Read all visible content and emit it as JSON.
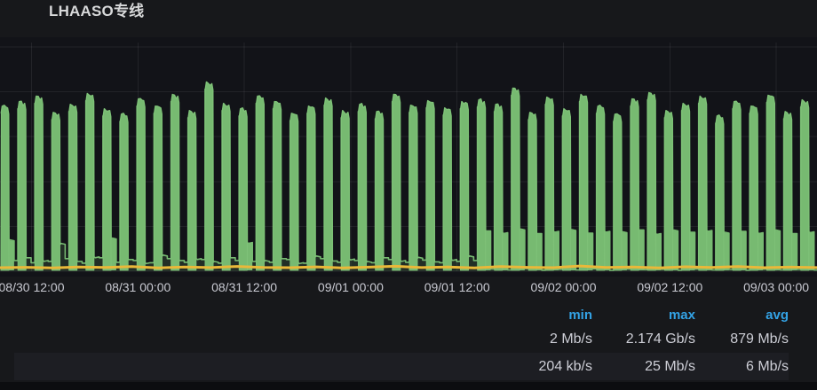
{
  "panel": {
    "title": "LHAASO专线"
  },
  "chart_data": {
    "type": "area",
    "title": "LHAASO专线",
    "description": "Grafana time-series panel of dedicated-line network traffic; periodic green bursts (~every 2h) with a flat orange low-rate series along the bottom",
    "x_tick_labels": [
      "08/30 12:00",
      "08/31 00:00",
      "08/31 12:00",
      "09/01 00:00",
      "09/01 12:00",
      "09/02 00:00",
      "09/02 12:00",
      "09/03 00:00"
    ],
    "x_tick_interval": "12h",
    "y_axis": {
      "unit": "Mb/s",
      "min": 0,
      "max": 2500,
      "gridline_values": [
        0,
        500,
        1000,
        1500,
        2000,
        2500
      ],
      "labels_visible": false
    },
    "grid": true,
    "series": [
      {
        "name": "series-1-green",
        "color": "#77ba71",
        "fill_color": "rgba(119,186,113,0.17)",
        "style": "area-bursts",
        "spikes_unit": "[peak Mb/s, shoulder Mb/s, gap Mb/s] per ~1.85h burst cycle",
        "spikes": [
          [
            1850,
            340,
            120
          ],
          [
            1900,
            150,
            95
          ],
          [
            1960,
            120,
            110
          ],
          [
            1780,
            300,
            140
          ],
          [
            1870,
            110,
            90
          ],
          [
            1990,
            160,
            150
          ],
          [
            1820,
            360,
            100
          ],
          [
            1760,
            130,
            120
          ],
          [
            1930,
            95,
            95
          ],
          [
            1850,
            170,
            140
          ],
          [
            1980,
            120,
            100
          ],
          [
            1800,
            140,
            130
          ],
          [
            2120,
            100,
            90
          ],
          [
            1880,
            150,
            120
          ],
          [
            1820,
            320,
            110
          ],
          [
            1960,
            110,
            100
          ],
          [
            1900,
            140,
            130
          ],
          [
            1770,
            95,
            90
          ],
          [
            1850,
            160,
            140
          ],
          [
            1940,
            115,
            100
          ],
          [
            1800,
            135,
            120
          ],
          [
            1870,
            100,
            95
          ],
          [
            1790,
            150,
            130
          ],
          [
            1980,
            120,
            100
          ],
          [
            1860,
            145,
            125
          ],
          [
            1910,
            105,
            95
          ],
          [
            1830,
            130,
            110
          ],
          [
            1900,
            160,
            120
          ],
          [
            1920,
            450,
            25
          ],
          [
            1870,
            430,
            15
          ],
          [
            2050,
            460,
            30
          ],
          [
            1780,
            420,
            12
          ],
          [
            1950,
            445,
            22
          ],
          [
            1820,
            455,
            15
          ],
          [
            1980,
            425,
            28
          ],
          [
            1850,
            445,
            10
          ],
          [
            1760,
            430,
            25
          ],
          [
            1930,
            460,
            18
          ],
          [
            2000,
            420,
            22
          ],
          [
            1800,
            450,
            12
          ],
          [
            1880,
            435,
            26
          ],
          [
            1960,
            455,
            15
          ],
          [
            1740,
            425,
            20
          ],
          [
            1900,
            445,
            12
          ],
          [
            1850,
            430,
            24
          ],
          [
            1970,
            450,
            16
          ],
          [
            1790,
            420,
            20
          ],
          [
            1920,
            440,
            14
          ]
        ]
      },
      {
        "name": "series-2-orange",
        "color": "#eab839",
        "style": "line",
        "values_mbps": [
          8,
          12,
          6,
          15,
          10,
          18,
          7,
          14,
          9,
          20,
          11,
          8,
          16,
          6,
          13,
          22,
          9,
          15,
          7,
          18,
          12,
          8,
          24,
          10,
          14,
          6,
          17,
          11,
          19,
          8,
          13,
          9
        ]
      }
    ],
    "legend": {
      "position": "bottom",
      "header_color": "#33a2e5",
      "headers": [
        "min",
        "max",
        "avg"
      ],
      "rows": [
        {
          "min": "2 Mb/s",
          "max": "2.174 Gb/s",
          "avg": "879 Mb/s"
        },
        {
          "min": "204 kb/s",
          "max": "25 Mb/s",
          "avg": "6 Mb/s"
        }
      ]
    }
  },
  "colors": {
    "panel_background": "#17181b",
    "plot_background": "#121318",
    "gridline": "rgba(255,255,255,0.07)",
    "axis_text": "#c9cad2",
    "title_text": "#d8d9da",
    "legend_value_text": "#cdced6",
    "legend_row_alt": "#1d1e23"
  }
}
